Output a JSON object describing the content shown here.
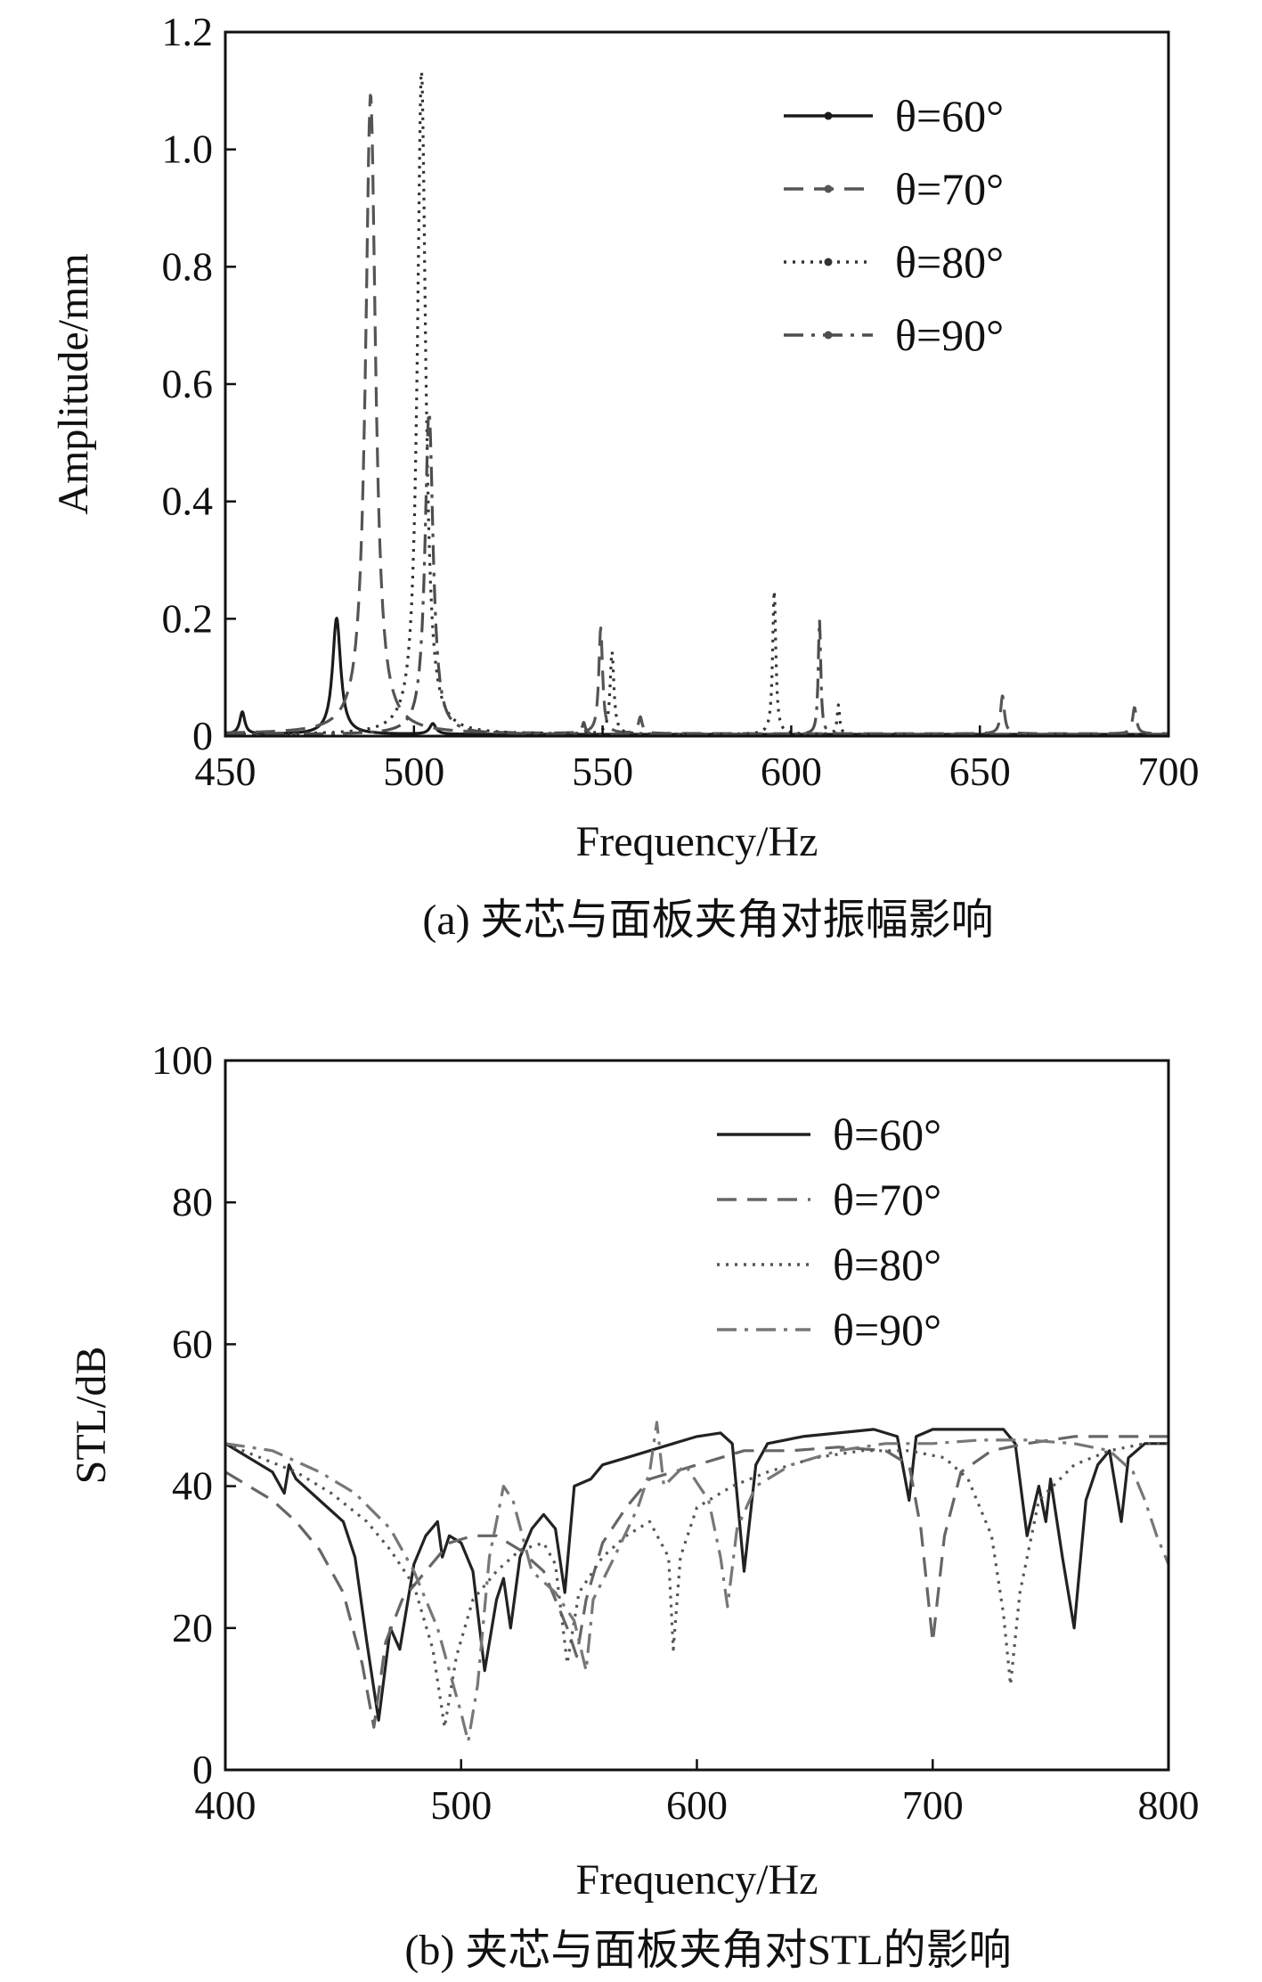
{
  "chart_data": [
    {
      "type": "line",
      "caption": "(a) 夹芯与面板夹角对振幅影响",
      "xlabel": "Frequency/Hz",
      "ylabel": "Amplitude/mm",
      "xlim": [
        450,
        700
      ],
      "ylim": [
        0,
        1.2
      ],
      "xticks": [
        "450",
        "500",
        "550",
        "600",
        "650",
        "700"
      ],
      "yticks": [
        "0",
        "0.2",
        "0.4",
        "0.6",
        "0.8",
        "1.0",
        "1.2"
      ],
      "legend_position": "top-right",
      "grid": false,
      "series": [
        {
          "name": "θ=60°",
          "color": "#1a1a1a",
          "dash": "solid",
          "baseline": 0.003,
          "peaks": [
            [
              454.5,
              0.038,
              0.8
            ],
            [
              479.5,
              0.198,
              1.3
            ],
            [
              505,
              0.018,
              1.0
            ]
          ]
        },
        {
          "name": "θ=70°",
          "color": "#555555",
          "dash": "dashed",
          "baseline": 0.004,
          "peaks": [
            [
              488.5,
              1.09,
              1.6
            ],
            [
              549.5,
              0.18,
              0.6
            ],
            [
              560,
              0.028,
              0.6
            ],
            [
              656,
              0.065,
              0.6
            ],
            [
              691,
              0.045,
              0.6
            ]
          ]
        },
        {
          "name": "θ=80°",
          "color": "#333333",
          "dash": "dotted",
          "baseline": 0.003,
          "peaks": [
            [
              502,
              1.13,
              1.3
            ],
            [
              552.5,
              0.14,
              0.6
            ],
            [
              595.5,
              0.245,
              0.5
            ],
            [
              612.5,
              0.05,
              0.4
            ]
          ]
        },
        {
          "name": "θ=90°",
          "color": "#4d4d4d",
          "dash": "dashdot",
          "baseline": 0.003,
          "peaks": [
            [
              504,
              0.55,
              1.3
            ],
            [
              545,
              0.02,
              0.5
            ],
            [
              607.5,
              0.195,
              0.4
            ]
          ]
        }
      ]
    },
    {
      "type": "line",
      "caption": "(b) 夹芯与面板夹角对STL的影响",
      "xlabel": "Frequency/Hz",
      "ylabel": "STL/dB",
      "xlim": [
        400,
        800
      ],
      "ylim": [
        0,
        100
      ],
      "xticks": [
        "400",
        "500",
        "600",
        "700",
        "800"
      ],
      "yticks": [
        "0",
        "20",
        "40",
        "60",
        "80",
        "100"
      ],
      "legend_position": "top-right",
      "grid": false,
      "series": [
        {
          "name": "θ=60°",
          "color": "#222222",
          "dash": "solid",
          "points": [
            [
              400,
              46
            ],
            [
              410,
              44
            ],
            [
              420,
              42
            ],
            [
              425,
              39
            ],
            [
              427,
              43
            ],
            [
              430,
              41
            ],
            [
              440,
              38
            ],
            [
              450,
              35
            ],
            [
              455,
              30
            ],
            [
              460,
              18
            ],
            [
              465,
              7
            ],
            [
              470,
              20
            ],
            [
              474,
              17
            ],
            [
              480,
              29
            ],
            [
              485,
              33
            ],
            [
              490,
              35
            ],
            [
              492,
              30
            ],
            [
              495,
              33
            ],
            [
              500,
              32
            ],
            [
              505,
              28
            ],
            [
              510,
              14
            ],
            [
              515,
              24
            ],
            [
              518,
              27
            ],
            [
              521,
              20
            ],
            [
              525,
              30
            ],
            [
              530,
              34
            ],
            [
              535,
              36
            ],
            [
              540,
              34
            ],
            [
              544,
              25
            ],
            [
              548,
              40
            ],
            [
              555,
              41
            ],
            [
              560,
              43
            ],
            [
              570,
              44
            ],
            [
              580,
              45
            ],
            [
              590,
              46
            ],
            [
              600,
              47
            ],
            [
              610,
              47.5
            ],
            [
              615,
              46
            ],
            [
              620,
              28
            ],
            [
              625,
              43
            ],
            [
              630,
              46
            ],
            [
              645,
              47
            ],
            [
              660,
              47.5
            ],
            [
              675,
              48
            ],
            [
              685,
              47
            ],
            [
              690,
              38
            ],
            [
              693,
              47
            ],
            [
              700,
              48
            ],
            [
              720,
              48
            ],
            [
              730,
              48
            ],
            [
              735,
              46
            ],
            [
              740,
              33
            ],
            [
              745,
              40
            ],
            [
              748,
              35
            ],
            [
              750,
              41
            ],
            [
              755,
              30
            ],
            [
              760,
              20
            ],
            [
              765,
              38
            ],
            [
              770,
              43
            ],
            [
              775,
              45
            ],
            [
              780,
              35
            ],
            [
              783,
              44
            ],
            [
              790,
              46
            ],
            [
              800,
              46
            ]
          ]
        },
        {
          "name": "θ=70°",
          "color": "#666666",
          "dash": "dashed",
          "points": [
            [
              400,
              42
            ],
            [
              410,
              40
            ],
            [
              420,
              38
            ],
            [
              430,
              35
            ],
            [
              440,
              31
            ],
            [
              450,
              25
            ],
            [
              458,
              15
            ],
            [
              463,
              6
            ],
            [
              468,
              18
            ],
            [
              475,
              24
            ],
            [
              485,
              28
            ],
            [
              495,
              32
            ],
            [
              505,
              33
            ],
            [
              515,
              33
            ],
            [
              525,
              31
            ],
            [
              535,
              28
            ],
            [
              545,
              20
            ],
            [
              549,
              16
            ],
            [
              553,
              24
            ],
            [
              560,
              32
            ],
            [
              570,
              37
            ],
            [
              580,
              41
            ],
            [
              590,
              42
            ],
            [
              600,
              43
            ],
            [
              610,
              44
            ],
            [
              620,
              45
            ],
            [
              640,
              45
            ],
            [
              660,
              45.5
            ],
            [
              680,
              45
            ],
            [
              690,
              43
            ],
            [
              695,
              34
            ],
            [
              700,
              18
            ],
            [
              705,
              33
            ],
            [
              712,
              42
            ],
            [
              725,
              45
            ],
            [
              740,
              46
            ],
            [
              760,
              47
            ],
            [
              780,
              47
            ],
            [
              800,
              47
            ]
          ]
        },
        {
          "name": "θ=80°",
          "color": "#555555",
          "dash": "dotted",
          "points": [
            [
              400,
              46
            ],
            [
              415,
              44
            ],
            [
              430,
              42
            ],
            [
              445,
              39
            ],
            [
              460,
              35
            ],
            [
              470,
              31
            ],
            [
              480,
              26
            ],
            [
              488,
              17
            ],
            [
              493,
              6
            ],
            [
              498,
              16
            ],
            [
              505,
              24
            ],
            [
              515,
              28
            ],
            [
              525,
              31
            ],
            [
              535,
              32
            ],
            [
              540,
              29
            ],
            [
              545,
              15
            ],
            [
              550,
              25
            ],
            [
              560,
              30
            ],
            [
              570,
              33
            ],
            [
              580,
              35
            ],
            [
              588,
              30
            ],
            [
              590,
              17
            ],
            [
              593,
              30
            ],
            [
              600,
              37
            ],
            [
              615,
              40
            ],
            [
              630,
              42
            ],
            [
              650,
              44
            ],
            [
              670,
              45
            ],
            [
              690,
              45
            ],
            [
              705,
              44
            ],
            [
              715,
              41
            ],
            [
              725,
              33
            ],
            [
              730,
              22
            ],
            [
              733,
              12
            ],
            [
              737,
              25
            ],
            [
              745,
              38
            ],
            [
              760,
              43
            ],
            [
              775,
              45
            ],
            [
              790,
              46
            ],
            [
              800,
              46
            ]
          ]
        },
        {
          "name": "θ=90°",
          "color": "#777777",
          "dash": "dashdot",
          "points": [
            [
              400,
              46
            ],
            [
              420,
              45
            ],
            [
              440,
              42
            ],
            [
              455,
              39
            ],
            [
              470,
              34
            ],
            [
              480,
              28
            ],
            [
              490,
              20
            ],
            [
              495,
              14
            ],
            [
              500,
              8
            ],
            [
              503,
              4
            ],
            [
              507,
              12
            ],
            [
              512,
              30
            ],
            [
              518,
              40
            ],
            [
              522,
              38
            ],
            [
              530,
              28
            ],
            [
              540,
              25
            ],
            [
              548,
              21
            ],
            [
              553,
              14
            ],
            [
              556,
              24
            ],
            [
              565,
              30
            ],
            [
              575,
              37
            ],
            [
              580,
              42
            ],
            [
              583,
              49
            ],
            [
              586,
              40
            ],
            [
              595,
              43
            ],
            [
              605,
              38
            ],
            [
              610,
              30
            ],
            [
              613,
              23
            ],
            [
              617,
              34
            ],
            [
              625,
              40
            ],
            [
              640,
              43
            ],
            [
              660,
              45
            ],
            [
              680,
              46
            ],
            [
              700,
              46
            ],
            [
              720,
              46.5
            ],
            [
              740,
              46.5
            ],
            [
              760,
              46
            ],
            [
              775,
              45
            ],
            [
              785,
              42
            ],
            [
              790,
              38
            ],
            [
              795,
              33
            ],
            [
              800,
              29
            ]
          ]
        }
      ]
    }
  ]
}
